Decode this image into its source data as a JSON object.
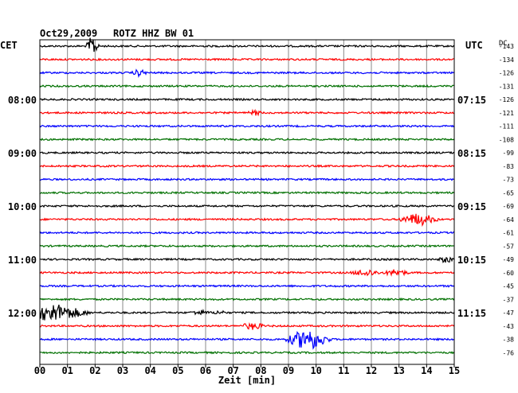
{
  "header": {
    "date": "Oct29,2009",
    "station": "ROTZ HHZ BW 01",
    "left_zone": "CET",
    "right_zone": "UTC",
    "offset_label": "DC"
  },
  "colors": {
    "trace_cycle": [
      "#000000",
      "#ff0000",
      "#0000ff",
      "#007000"
    ],
    "grid": "#888888",
    "frame": "#000000"
  },
  "chart_data": {
    "type": "line",
    "title": "Oct29,2009   ROTZ HHZ BW 01",
    "xlabel": "Zeit [min]",
    "xlim": [
      0,
      15
    ],
    "x_ticks": [
      "00",
      "01",
      "02",
      "03",
      "04",
      "05",
      "06",
      "07",
      "08",
      "09",
      "10",
      "11",
      "12",
      "13",
      "14",
      "15"
    ],
    "trace_count": 24,
    "left_time_labels": [
      {
        "row": 4,
        "label": "08:00"
      },
      {
        "row": 8,
        "label": "09:00"
      },
      {
        "row": 12,
        "label": "10:00"
      },
      {
        "row": 16,
        "label": "11:00"
      },
      {
        "row": 20,
        "label": "12:00"
      }
    ],
    "right_time_labels": [
      {
        "row": 4,
        "label": "07:15"
      },
      {
        "row": 8,
        "label": "08:15"
      },
      {
        "row": 12,
        "label": "09:15"
      },
      {
        "row": 16,
        "label": "10:15"
      },
      {
        "row": 20,
        "label": "11:15"
      }
    ],
    "dc_offsets": [
      -143,
      -134,
      -126,
      -131,
      -126,
      -121,
      -111,
      -108,
      -99,
      -83,
      -73,
      -65,
      -69,
      -64,
      -61,
      -57,
      -49,
      -60,
      -45,
      -37,
      -47,
      -43,
      -38,
      -76
    ],
    "events": [
      {
        "row": 0,
        "minute": 1.9,
        "amplitude": 1.0,
        "duration": 0.25
      },
      {
        "row": 2,
        "minute": 3.6,
        "amplitude": 0.3,
        "duration": 0.3
      },
      {
        "row": 5,
        "minute": 7.8,
        "amplitude": 0.2,
        "duration": 0.3
      },
      {
        "row": 13,
        "minute": 13.7,
        "amplitude": 0.55,
        "duration": 0.8
      },
      {
        "row": 16,
        "minute": 14.7,
        "amplitude": 0.3,
        "duration": 0.3
      },
      {
        "row": 17,
        "minute": 11.8,
        "amplitude": 0.3,
        "duration": 0.6
      },
      {
        "row": 17,
        "minute": 12.9,
        "amplitude": 0.3,
        "duration": 0.5
      },
      {
        "row": 20,
        "minute": 0.5,
        "amplitude": 0.8,
        "duration": 1.4
      },
      {
        "row": 20,
        "minute": 5.8,
        "amplitude": 0.2,
        "duration": 0.4
      },
      {
        "row": 20,
        "minute": 6.5,
        "amplitude": 0.15,
        "duration": 0.3
      },
      {
        "row": 21,
        "minute": 7.7,
        "amplitude": 0.3,
        "duration": 0.5
      },
      {
        "row": 22,
        "minute": 9.7,
        "amplitude": 1.0,
        "duration": 0.9
      }
    ]
  }
}
